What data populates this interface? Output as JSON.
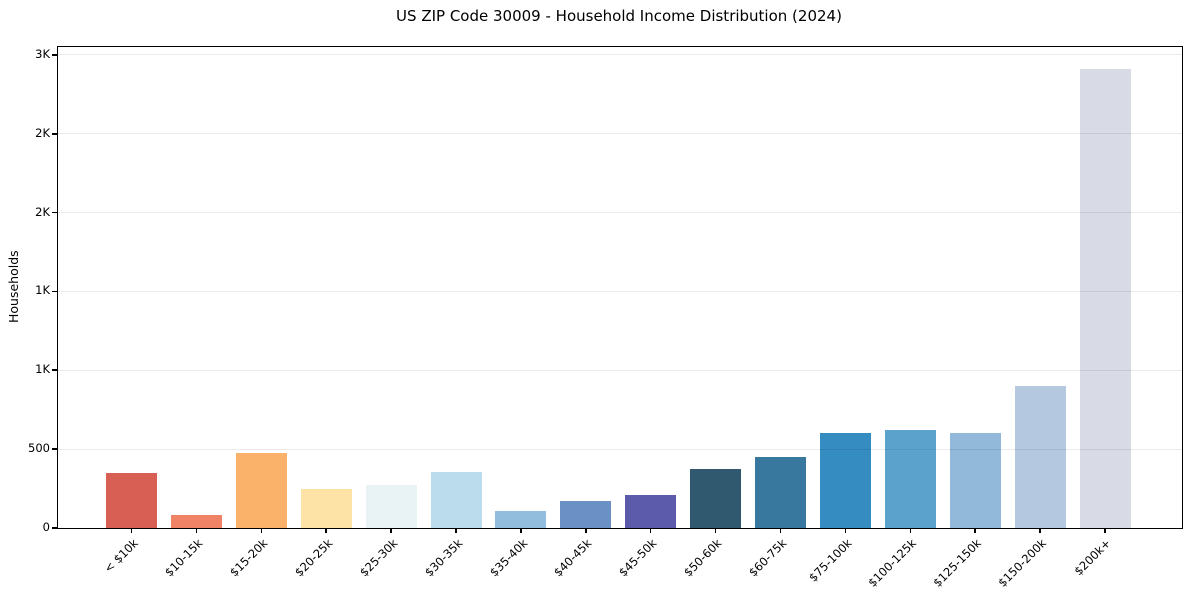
{
  "title": "US ZIP Code 30009 - Household Income Distribution (2024)",
  "chart_data": {
    "type": "bar",
    "title": "US ZIP Code 30009 - Household Income Distribution (2024)",
    "xlabel": "",
    "ylabel": "Households",
    "categories": [
      "< $10k",
      "$10-15k",
      "$15-20k",
      "$20-25k",
      "$25-30k",
      "$30-35k",
      "$35-40k",
      "$40-45k",
      "$45-50k",
      "$50-60k",
      "$60-75k",
      "$75-100k",
      "$100-125k",
      "$125-150k",
      "$150-200k",
      "$200k+"
    ],
    "values": [
      350,
      85,
      475,
      250,
      270,
      355,
      105,
      170,
      210,
      375,
      450,
      600,
      620,
      605,
      900,
      2910
    ],
    "bar_colors": [
      "#d75f54",
      "#f08265",
      "#fab26a",
      "#fde3a5",
      "#e9f2f5",
      "#badcec",
      "#92bddd",
      "#6b90c6",
      "#5c5bab",
      "#30586e",
      "#38789f",
      "#358cc0",
      "#5ba3cc",
      "#92b9da",
      "#b4c8e0",
      "#d8dae5"
    ],
    "ylim": [
      0,
      3050
    ],
    "yticks": [
      0,
      500,
      1000,
      1500,
      2000,
      2500,
      3000
    ],
    "ytick_labels": [
      "0",
      "500",
      "1K",
      "1K",
      "2K",
      "2K",
      "3K"
    ],
    "grid": "horizontal",
    "grid_color": "rgba(0,0,0,0.08)",
    "legend": "none"
  },
  "colors": {
    "background": "#ffffff",
    "spine": "#000000",
    "text": "#000000"
  }
}
